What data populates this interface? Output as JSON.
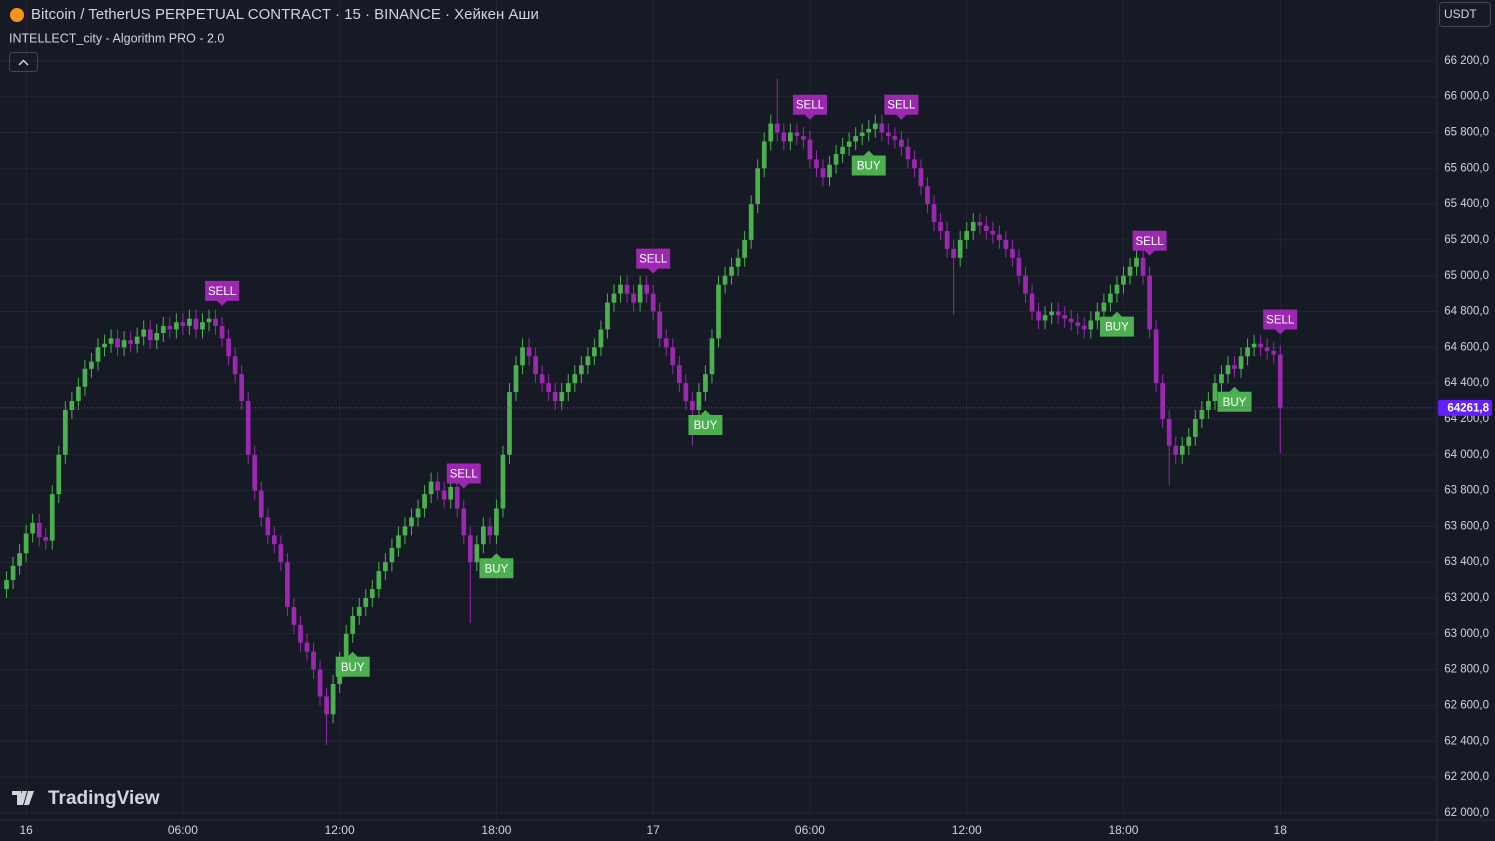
{
  "chart_data": {
    "type": "candlestick",
    "title": "Bitcoin / TetherUS PERPETUAL CONTRACT · 15 · BINANCE · Хейкен Аши",
    "subtitle": "INTELLECT_city - Algorithm PRO - 2.0",
    "currency": "USDT",
    "watermark": "TradingView",
    "up_color": "#4caf50",
    "down_color": "#9c27b0",
    "buy_color": "#4caf50",
    "sell_color": "#9c27b0",
    "grid": true,
    "xlim": [
      -1,
      219
    ],
    "xticks": [
      {
        "value": 3,
        "label": "16"
      },
      {
        "value": 27,
        "label": "06:00"
      },
      {
        "value": 51,
        "label": "12:00"
      },
      {
        "value": 75,
        "label": "18:00"
      },
      {
        "value": 99,
        "label": "17"
      },
      {
        "value": 123,
        "label": "06:00"
      },
      {
        "value": 147,
        "label": "12:00"
      },
      {
        "value": 171,
        "label": "18:00"
      },
      {
        "value": 195,
        "label": "18"
      }
    ],
    "ylim": [
      61960,
      66540
    ],
    "yticks": [
      {
        "value": 66200,
        "label": "66 200,0"
      },
      {
        "value": 66000,
        "label": "66 000,0"
      },
      {
        "value": 65800,
        "label": "65 800,0"
      },
      {
        "value": 65600,
        "label": "65 600,0"
      },
      {
        "value": 65400,
        "label": "65 400,0"
      },
      {
        "value": 65200,
        "label": "65 200,0"
      },
      {
        "value": 65000,
        "label": "65 000,0"
      },
      {
        "value": 64800,
        "label": "64 800,0"
      },
      {
        "value": 64600,
        "label": "64 600,0"
      },
      {
        "value": 64400,
        "label": "64 400,0"
      },
      {
        "value": 64200,
        "label": "64 200,0"
      },
      {
        "value": 64000,
        "label": "64 000,0"
      },
      {
        "value": 63800,
        "label": "63 800,0"
      },
      {
        "value": 63600,
        "label": "63 600,0"
      },
      {
        "value": 63400,
        "label": "63 400,0"
      },
      {
        "value": 63200,
        "label": "63 200,0"
      },
      {
        "value": 63000,
        "label": "63 000,0"
      },
      {
        "value": 62800,
        "label": "62 800,0"
      },
      {
        "value": 62600,
        "label": "62 600,0"
      },
      {
        "value": 62400,
        "label": "62 400,0"
      },
      {
        "value": 62200,
        "label": "62 200,0"
      },
      {
        "value": 62000,
        "label": "62 000,0"
      }
    ],
    "last_price_label": "64261,8",
    "open": [
      63250,
      63300,
      63380,
      63450,
      63560,
      63620,
      63540,
      63520,
      63780,
      64000,
      64250,
      64300,
      64380,
      64480,
      64520,
      64600,
      64620,
      64650,
      64600,
      64640,
      64620,
      64660,
      64700,
      64640,
      64680,
      64720,
      64700,
      64740,
      64720,
      64760,
      64700,
      64740,
      64760,
      64720,
      64650,
      64550,
      64450,
      64300,
      64000,
      63800,
      63650,
      63550,
      63500,
      63400,
      63150,
      63050,
      62950,
      62900,
      62800,
      62650,
      62550,
      62720,
      62850,
      63000,
      63100,
      63150,
      63200,
      63250,
      63350,
      63400,
      63480,
      63550,
      63600,
      63650,
      63700,
      63780,
      63850,
      63800,
      63750,
      63820,
      63700,
      63550,
      63400,
      63500,
      63600,
      63550,
      63700,
      64000,
      64350,
      64500,
      64600,
      64550,
      64450,
      64400,
      64350,
      64300,
      64350,
      64400,
      64450,
      64500,
      64550,
      64600,
      64700,
      64850,
      64900,
      64950,
      64900,
      64850,
      64950,
      64900,
      64800,
      64650,
      64600,
      64500,
      64400,
      64300,
      64250,
      64350,
      64450,
      64650,
      64950,
      65000,
      65050,
      65100,
      65200,
      65400,
      65600,
      65750,
      65850,
      65800,
      65750,
      65800,
      65780,
      65760,
      65650,
      65600,
      65550,
      65620,
      65680,
      65720,
      65750,
      65780,
      65800,
      65820,
      65850,
      65800,
      65780,
      65760,
      65720,
      65650,
      65600,
      65500,
      65400,
      65300,
      65250,
      65150,
      65100,
      65200,
      65250,
      65300,
      65280,
      65250,
      65230,
      65200,
      65150,
      65100,
      65000,
      64900,
      64800,
      64750,
      64780,
      64800,
      64780,
      64760,
      64740,
      64720,
      64700,
      64750,
      64800,
      64850,
      64900,
      64950,
      65000,
      65050,
      65100,
      65000,
      64700,
      64400,
      64200,
      64050,
      64000,
      64050,
      64100,
      64200,
      64250,
      64300,
      64400,
      64450,
      64500,
      64480,
      64550,
      64600,
      64620,
      64600,
      64580,
      64560
    ],
    "high": [
      63350,
      63430,
      63500,
      63610,
      63670,
      63670,
      63590,
      63830,
      64050,
      64300,
      64350,
      64430,
      64530,
      64570,
      64650,
      64670,
      64700,
      64700,
      64690,
      64690,
      64710,
      64750,
      64750,
      64730,
      64770,
      64770,
      64790,
      64790,
      64810,
      64810,
      64790,
      64810,
      64810,
      64770,
      64700,
      64600,
      64500,
      64350,
      64050,
      63850,
      63700,
      63600,
      63550,
      63450,
      63200,
      63100,
      63000,
      62950,
      62850,
      62700,
      62770,
      62900,
      63050,
      63150,
      63200,
      63250,
      63300,
      63400,
      63450,
      63530,
      63600,
      63650,
      63700,
      63750,
      63830,
      63900,
      63900,
      63850,
      63870,
      63870,
      63750,
      63600,
      63550,
      63650,
      63650,
      63750,
      64050,
      64400,
      64550,
      64650,
      64650,
      64600,
      64500,
      64450,
      64400,
      64400,
      64450,
      64500,
      64550,
      64600,
      64650,
      64750,
      64900,
      64950,
      65000,
      65000,
      64950,
      65000,
      65000,
      64950,
      64850,
      64700,
      64650,
      64550,
      64450,
      64350,
      64400,
      64500,
      64700,
      65000,
      65050,
      65100,
      65150,
      65250,
      65450,
      65650,
      65800,
      65900,
      66100,
      65850,
      65850,
      65850,
      65830,
      65810,
      65700,
      65650,
      65670,
      65730,
      65770,
      65800,
      65830,
      65850,
      65870,
      65900,
      65900,
      65850,
      65830,
      65810,
      65770,
      65700,
      65650,
      65550,
      65450,
      65350,
      65300,
      65200,
      65250,
      65300,
      65350,
      65350,
      65330,
      65300,
      65280,
      65250,
      65200,
      65150,
      65050,
      64950,
      64850,
      64830,
      64850,
      64850,
      64830,
      64810,
      64790,
      64770,
      64800,
      64850,
      64900,
      64950,
      65000,
      65050,
      65100,
      65150,
      65150,
      65050,
      64750,
      64450,
      64250,
      64100,
      64100,
      64150,
      64250,
      64300,
      64350,
      64450,
      64500,
      64550,
      64550,
      64600,
      64650,
      64670,
      64670,
      64650,
      64630,
      64610
    ],
    "low": [
      63200,
      63250,
      63330,
      63400,
      63510,
      63490,
      63470,
      63470,
      63730,
      63950,
      64200,
      64250,
      64330,
      64430,
      64470,
      64550,
      64570,
      64550,
      64550,
      64570,
      64570,
      64610,
      64590,
      64590,
      64630,
      64650,
      64650,
      64670,
      64670,
      64650,
      64650,
      64690,
      64670,
      64600,
      64500,
      64400,
      64250,
      63950,
      63750,
      63600,
      63500,
      63450,
      63350,
      63100,
      63000,
      62900,
      62850,
      62750,
      62600,
      62380,
      62500,
      62670,
      62800,
      62950,
      63050,
      63100,
      63150,
      63200,
      63300,
      63350,
      63430,
      63500,
      63550,
      63600,
      63650,
      63730,
      63750,
      63700,
      63700,
      63650,
      63500,
      63060,
      63350,
      63450,
      63500,
      63500,
      63650,
      63950,
      64300,
      64450,
      64500,
      64400,
      64350,
      64300,
      64250,
      64250,
      64300,
      64350,
      64400,
      64450,
      64500,
      64550,
      64650,
      64800,
      64850,
      64850,
      64800,
      64800,
      64850,
      64750,
      64600,
      64550,
      64450,
      64350,
      64250,
      64050,
      64200,
      64300,
      64400,
      64600,
      64900,
      64950,
      65000,
      65050,
      65150,
      65350,
      65550,
      65700,
      65750,
      65700,
      65700,
      65730,
      65710,
      65600,
      65550,
      65500,
      65500,
      65570,
      65630,
      65670,
      65700,
      65730,
      65750,
      65770,
      65750,
      65730,
      65710,
      65670,
      65600,
      65550,
      65450,
      65350,
      65250,
      65200,
      65100,
      64780,
      65050,
      65150,
      65200,
      65230,
      65200,
      65180,
      65150,
      65100,
      65050,
      64950,
      64850,
      64750,
      64700,
      64700,
      64730,
      64730,
      64710,
      64690,
      64670,
      64650,
      64650,
      64700,
      64750,
      64800,
      64850,
      64900,
      64950,
      65000,
      64950,
      64650,
      64350,
      64150,
      63830,
      63950,
      63950,
      64000,
      64050,
      64150,
      64200,
      64250,
      64350,
      64400,
      64430,
      64430,
      64500,
      64550,
      64550,
      64530,
      64510,
      64010
    ],
    "close": [
      63300,
      63380,
      63450,
      63560,
      63620,
      63540,
      63520,
      63780,
      64000,
      64250,
      64300,
      64380,
      64480,
      64520,
      64600,
      64620,
      64650,
      64600,
      64640,
      64620,
      64660,
      64700,
      64640,
      64680,
      64720,
      64700,
      64740,
      64720,
      64760,
      64700,
      64740,
      64760,
      64720,
      64650,
      64550,
      64450,
      64300,
      64000,
      63800,
      63650,
      63550,
      63500,
      63400,
      63150,
      63050,
      62950,
      62900,
      62800,
      62650,
      62550,
      62720,
      62850,
      63000,
      63100,
      63150,
      63200,
      63250,
      63350,
      63400,
      63480,
      63550,
      63600,
      63650,
      63700,
      63780,
      63850,
      63800,
      63750,
      63820,
      63700,
      63550,
      63400,
      63500,
      63600,
      63550,
      63700,
      64000,
      64350,
      64500,
      64600,
      64550,
      64450,
      64400,
      64350,
      64300,
      64350,
      64400,
      64450,
      64500,
      64550,
      64600,
      64700,
      64850,
      64900,
      64950,
      64900,
      64850,
      64950,
      64900,
      64800,
      64650,
      64600,
      64500,
      64400,
      64300,
      64250,
      64350,
      64450,
      64650,
      64950,
      65000,
      65050,
      65100,
      65200,
      65400,
      65600,
      65750,
      65850,
      65800,
      65750,
      65800,
      65780,
      65760,
      65650,
      65600,
      65550,
      65620,
      65680,
      65720,
      65750,
      65780,
      65800,
      65820,
      65850,
      65800,
      65780,
      65760,
      65720,
      65650,
      65600,
      65500,
      65400,
      65300,
      65250,
      65150,
      65100,
      65200,
      65250,
      65300,
      65280,
      65250,
      65230,
      65200,
      65150,
      65100,
      65000,
      64900,
      64800,
      64750,
      64780,
      64800,
      64780,
      64760,
      64740,
      64720,
      64700,
      64750,
      64800,
      64850,
      64900,
      64950,
      65000,
      65050,
      65100,
      65000,
      64700,
      64400,
      64200,
      64050,
      64000,
      64050,
      64100,
      64200,
      64250,
      64300,
      64400,
      64450,
      64500,
      64480,
      64550,
      64600,
      64620,
      64600,
      64580,
      64560,
      64261.8
    ],
    "signals": [
      {
        "label": "SELL",
        "x": 33
      },
      {
        "label": "BUY",
        "x": 53
      },
      {
        "label": "SELL",
        "x": 70
      },
      {
        "label": "BUY",
        "x": 75
      },
      {
        "label": "SELL",
        "x": 99
      },
      {
        "label": "BUY",
        "x": 107
      },
      {
        "label": "SELL",
        "x": 123
      },
      {
        "label": "BUY",
        "x": 132
      },
      {
        "label": "SELL",
        "x": 137
      },
      {
        "label": "BUY",
        "x": 170
      },
      {
        "label": "SELL",
        "x": 175
      },
      {
        "label": "BUY",
        "x": 188
      },
      {
        "label": "SELL",
        "x": 195
      }
    ]
  }
}
